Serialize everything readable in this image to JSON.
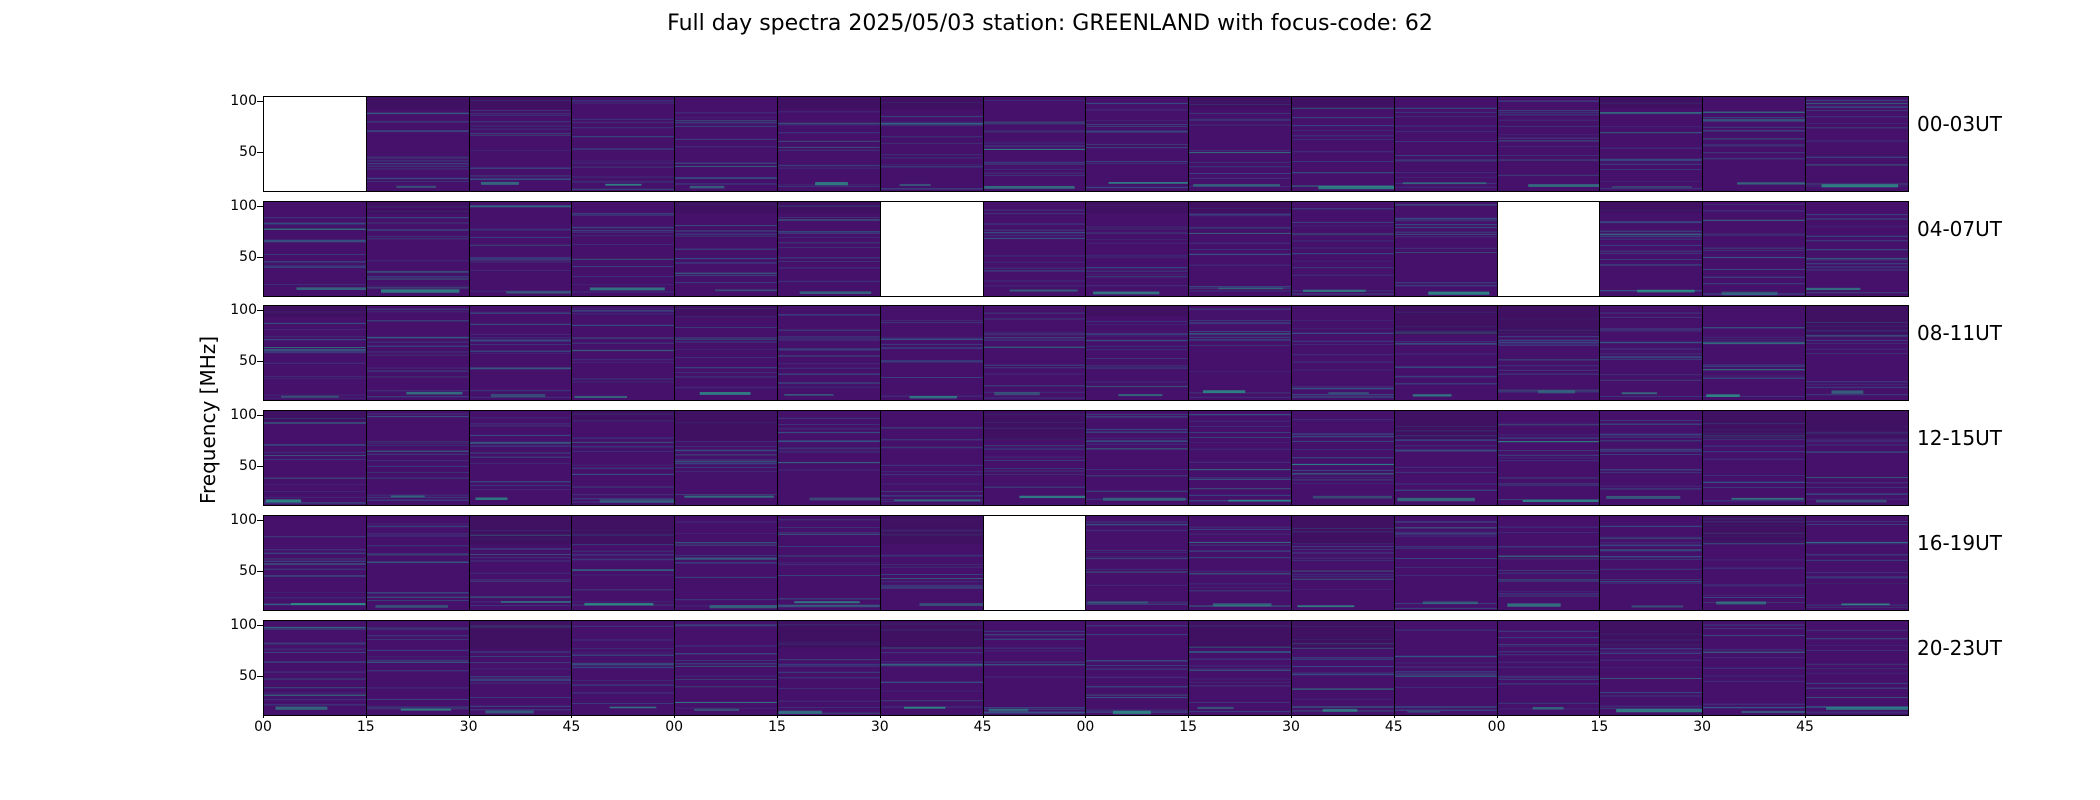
{
  "chart_data": {
    "type": "heatmap",
    "title": "Full day spectra 2025/05/03 station: GREENLAND with focus-code: 62",
    "ylabel": "Frequency [MHz]",
    "ylim": [
      10,
      105
    ],
    "yticks": [
      "100",
      "50"
    ],
    "xticks": [
      "00",
      "15",
      "30",
      "45",
      "00",
      "15",
      "30",
      "45",
      "00",
      "15",
      "30",
      "45",
      "00",
      "15",
      "30",
      "45"
    ],
    "colormap": "viridis",
    "colors": {
      "background": "#46116b",
      "line": "#30678d",
      "bright": "#26a98c",
      "dim": "#3a0f5c"
    },
    "rows": [
      {
        "label": "00-03UT",
        "missing": [
          0
        ]
      },
      {
        "label": "04-07UT",
        "missing": [
          6,
          12
        ]
      },
      {
        "label": "08-11UT",
        "missing": []
      },
      {
        "label": "12-15UT",
        "missing": []
      },
      {
        "label": "16-19UT",
        "missing": [
          7
        ]
      },
      {
        "label": "20-23UT",
        "missing": []
      }
    ]
  }
}
